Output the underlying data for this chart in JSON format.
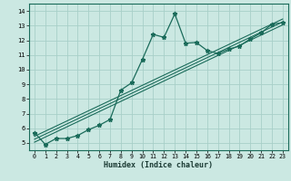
{
  "xlabel": "Humidex (Indice chaleur)",
  "ylabel": "",
  "bg_color": "#cbe8e2",
  "plot_bg_color": "#cbe8e2",
  "grid_color": "#a8cfc8",
  "line_color": "#1a6b5a",
  "xlim": [
    -0.5,
    23.5
  ],
  "ylim": [
    4.5,
    14.5
  ],
  "xticks": [
    0,
    1,
    2,
    3,
    4,
    5,
    6,
    7,
    8,
    9,
    10,
    11,
    12,
    13,
    14,
    15,
    16,
    17,
    18,
    19,
    20,
    21,
    22,
    23
  ],
  "yticks": [
    5,
    6,
    7,
    8,
    9,
    10,
    11,
    12,
    13,
    14
  ],
  "main_x": [
    0,
    1,
    2,
    3,
    4,
    5,
    6,
    7,
    8,
    9,
    10,
    11,
    12,
    13,
    14,
    15,
    16,
    17,
    18,
    19,
    20,
    21,
    22,
    23
  ],
  "main_y": [
    5.7,
    4.9,
    5.3,
    5.3,
    5.5,
    5.9,
    6.2,
    6.6,
    8.6,
    9.1,
    10.7,
    12.4,
    12.2,
    13.8,
    11.8,
    11.85,
    11.3,
    11.1,
    11.4,
    11.6,
    12.1,
    12.5,
    13.1,
    13.2
  ],
  "line1_x": [
    0,
    23
  ],
  "line1_y": [
    5.05,
    13.05
  ],
  "line2_x": [
    0,
    23
  ],
  "line2_y": [
    5.25,
    13.25
  ],
  "line3_x": [
    0,
    23
  ],
  "line3_y": [
    5.45,
    13.45
  ]
}
